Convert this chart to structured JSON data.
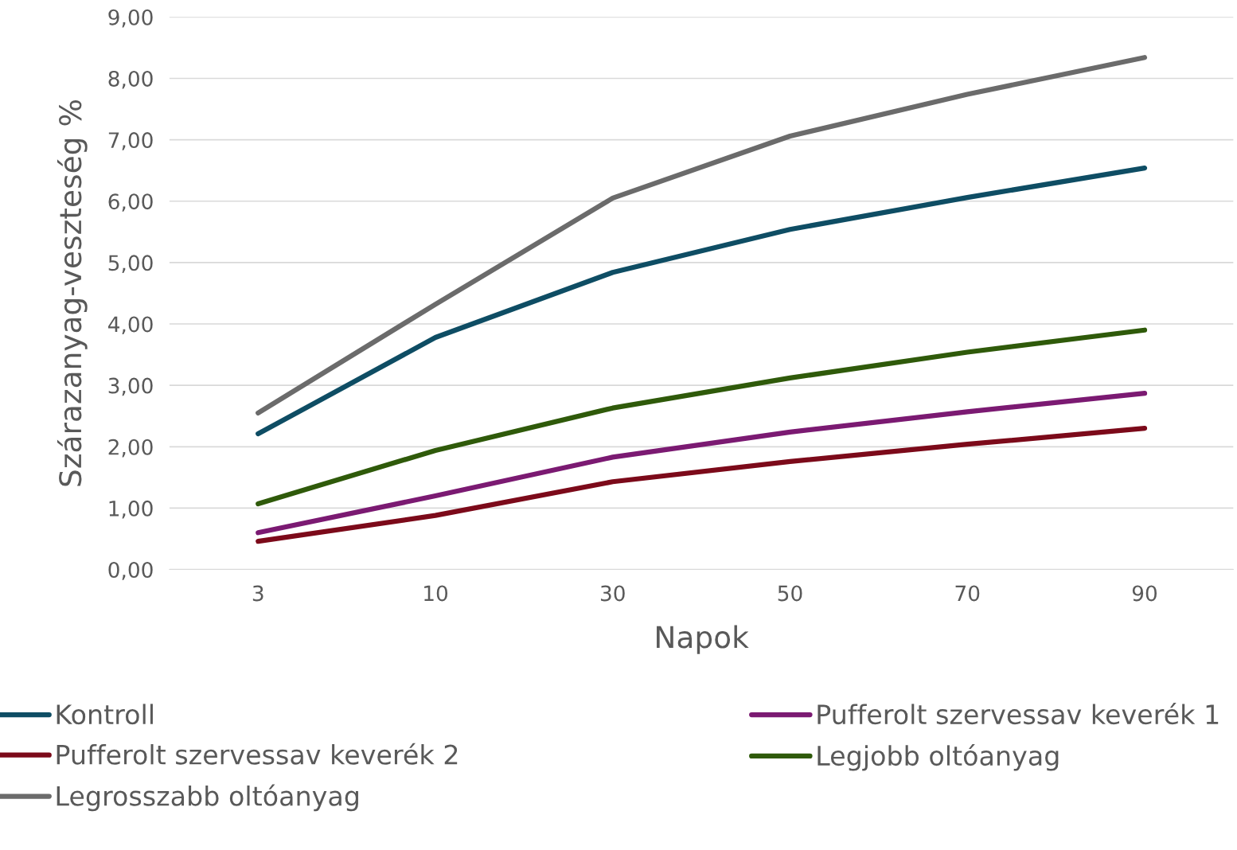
{
  "chart_data": {
    "type": "line",
    "xlabel": "Napok",
    "ylabel": "Szárazanyag-veszteség %",
    "categories": [
      "3",
      "10",
      "30",
      "50",
      "70",
      "90"
    ],
    "series": [
      {
        "name": "Kontroll",
        "color": "#0e4d64",
        "values": [
          2.21,
          3.78,
          4.84,
          5.54,
          6.06,
          6.54
        ]
      },
      {
        "name": "Pufferolt szervessav keverék 1",
        "color": "#7b1a72",
        "values": [
          0.6,
          1.2,
          1.83,
          2.24,
          2.57,
          2.87
        ]
      },
      {
        "name": "Pufferolt szervessav keverék 2",
        "color": "#7c0a1a",
        "values": [
          0.46,
          0.88,
          1.43,
          1.76,
          2.04,
          2.3
        ]
      },
      {
        "name": "Legjobb oltóanyag",
        "color": "#2f5a0a",
        "values": [
          1.07,
          1.94,
          2.63,
          3.12,
          3.54,
          3.9
        ]
      },
      {
        "name": "Legrosszabb oltóanyag",
        "color": "#6b6b6b",
        "values": [
          2.55,
          4.32,
          6.05,
          7.06,
          7.74,
          8.34
        ]
      }
    ],
    "ylim": [
      0,
      9
    ],
    "yticks": [
      {
        "value": 0,
        "label": "0,00"
      },
      {
        "value": 1,
        "label": "1,00"
      },
      {
        "value": 2,
        "label": "2,00"
      },
      {
        "value": 3,
        "label": "3,00"
      },
      {
        "value": 4,
        "label": "4,00"
      },
      {
        "value": 5,
        "label": "5,00"
      },
      {
        "value": 6,
        "label": "6,00"
      },
      {
        "value": 7,
        "label": "7,00"
      },
      {
        "value": 8,
        "label": "8,00"
      },
      {
        "value": 9,
        "label": "9,00"
      }
    ],
    "grid": "y",
    "legend": "bottom",
    "marker": "none",
    "line_style": "solid"
  }
}
